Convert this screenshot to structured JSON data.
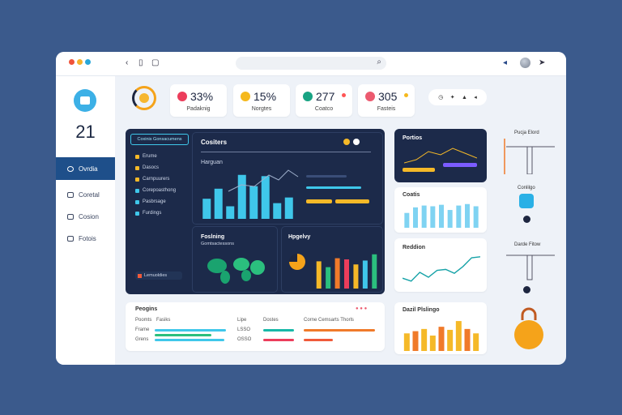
{
  "sidebar": {
    "number": "21",
    "items": [
      {
        "label": "Ovrdia"
      },
      {
        "label": "Coretal"
      },
      {
        "label": "Cosion"
      },
      {
        "label": "Fotois"
      }
    ]
  },
  "stats": [
    {
      "value": "33%",
      "label": "Padaknig",
      "color": "#ec3d5b"
    },
    {
      "value": "15%",
      "label": "Norgtes",
      "color": "#f5b81c"
    },
    {
      "value": "277",
      "label": "Coatco",
      "color": "#18a383"
    },
    {
      "value": "305",
      "label": "Fasteis",
      "color": "#ec5a6f"
    }
  ],
  "pill": {
    "items": [
      "◷",
      "✦",
      "▲",
      "◂"
    ]
  },
  "cockpit": {
    "tab": "Coxinis Gonsacumens",
    "items": [
      "Erume",
      "Dasocs",
      "Carnpuurers",
      "Corepoasthong",
      "Pasbrsage",
      "Furdings"
    ],
    "footer": "Lemuoldies"
  },
  "main": {
    "title": "Cositers",
    "subtitle": "Harguan",
    "chart_data": {
      "type": "bar",
      "categories": [
        "1",
        "2",
        "3",
        "4",
        "5",
        "6",
        "7",
        "8"
      ],
      "values": [
        32,
        48,
        20,
        70,
        52,
        68,
        25,
        34
      ],
      "ylim": [
        0,
        80
      ]
    }
  },
  "panels": {
    "map": {
      "title": "Foslning",
      "sub": "Gomtsactessons"
    },
    "colorful": {
      "title": "Hpgelvy",
      "values": [
        70,
        55,
        78,
        75,
        62,
        72,
        88
      ]
    },
    "right_top": {
      "title": "Portios"
    },
    "cards": {
      "title": "Coatis",
      "values": [
        40,
        55,
        60,
        58,
        62,
        48,
        60,
        64,
        58
      ]
    },
    "line": {
      "title": "Reddion",
      "values": [
        18,
        12,
        30,
        20,
        34,
        36,
        28,
        42,
        60,
        62
      ]
    },
    "lower_left": {
      "title": "Peogins",
      "rows": [
        {
          "a": "Poomts",
          "b": "Fasiks"
        },
        {
          "a": "Frame",
          "b": ""
        },
        {
          "a": "Grens",
          "b": ""
        },
        {
          "a": "Glene",
          "b": ""
        }
      ],
      "mid": [
        "Lipe",
        "LSSO",
        "OSSO"
      ],
      "head": "Dostes",
      "col3": "Corne Cemsarts Thorls"
    },
    "bars2": {
      "title": "Dazil Plslingo",
      "values": [
        40,
        45,
        50,
        35,
        55,
        48,
        68,
        50,
        40
      ]
    }
  },
  "right_col": {
    "top_label": "Pucja Elord",
    "mid_label": "Conlilgo",
    "bot_label": "Darde Fitow"
  },
  "colors": {
    "accent": "#1e4f8a",
    "dark": "#1c2a4a",
    "cyan": "#3fc7ea",
    "yellow": "#f5b928"
  }
}
